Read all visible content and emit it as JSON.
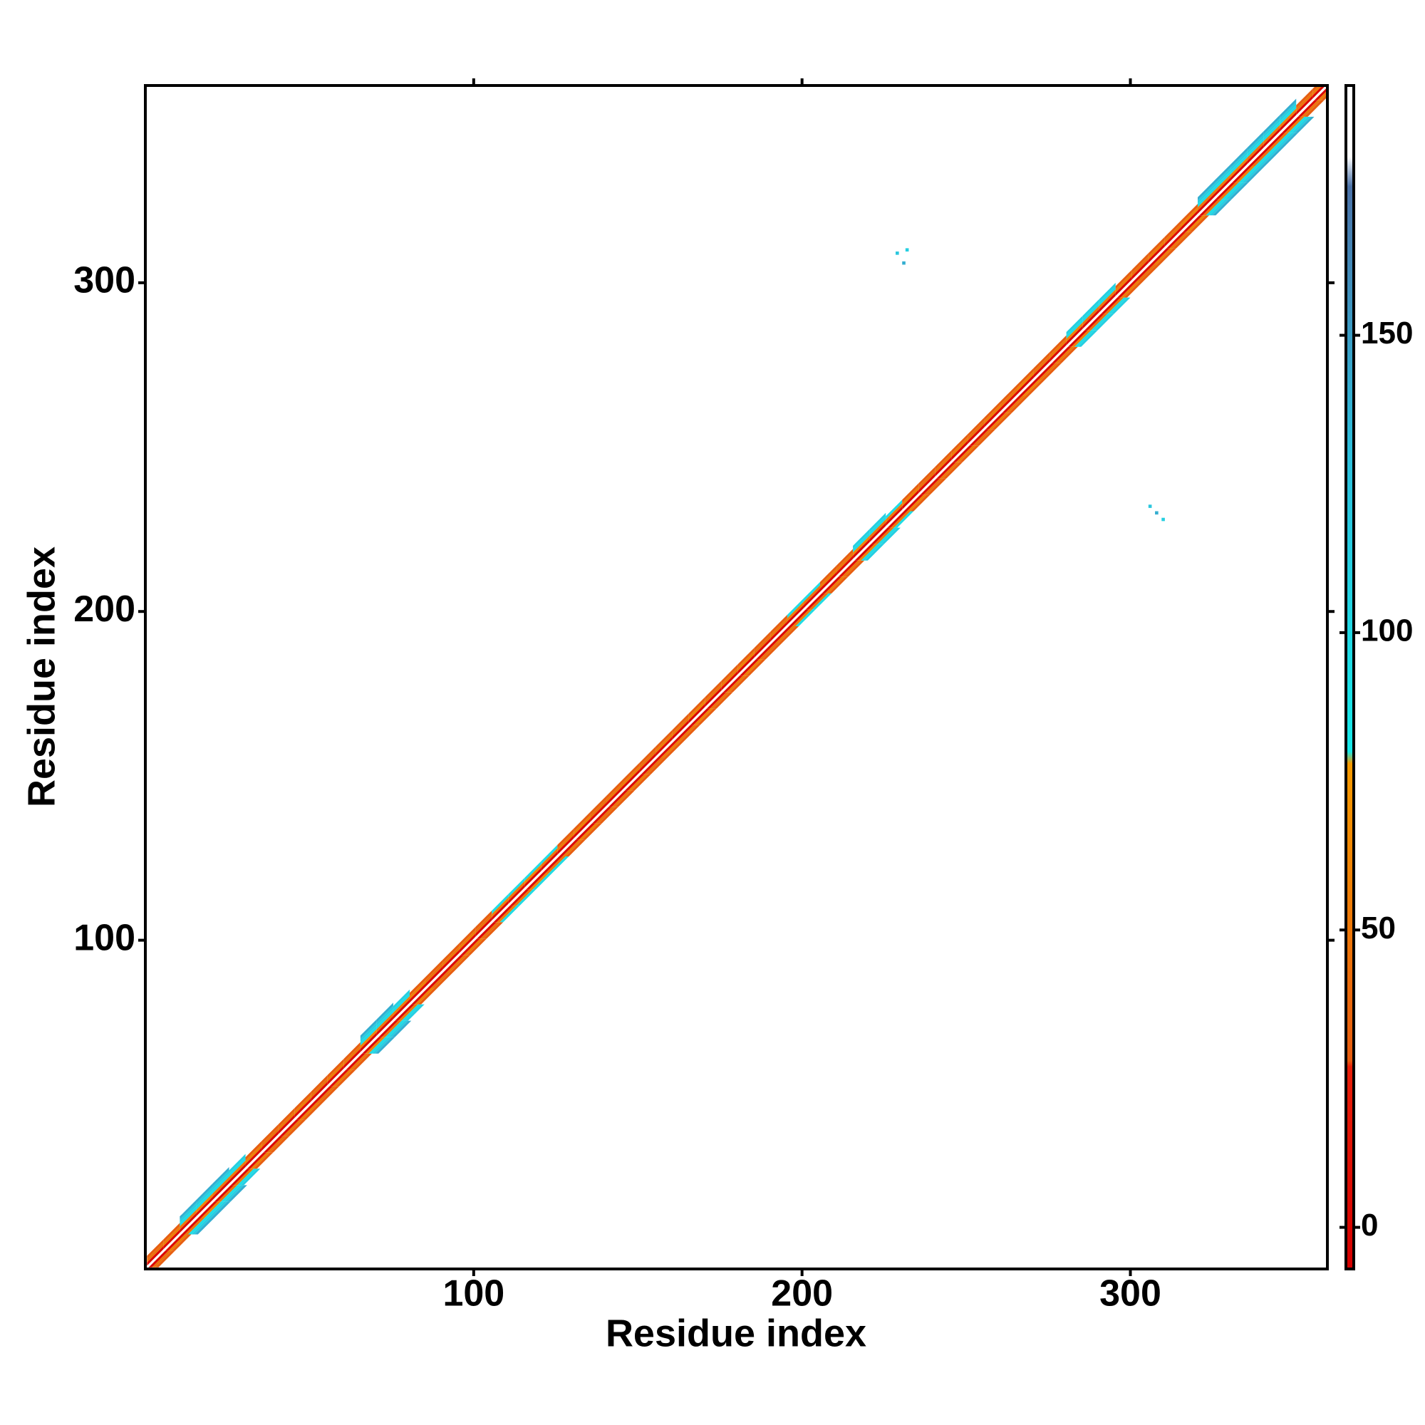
{
  "chart_data": {
    "type": "heatmap",
    "x_label": "Residue index",
    "y_label": "Residue index",
    "xlim": [
      0,
      360
    ],
    "ylim": [
      0,
      360
    ],
    "xticks": [
      100,
      200,
      300
    ],
    "yticks": [
      100,
      200,
      300
    ],
    "x": [
      3,
      8,
      13,
      18,
      23,
      28,
      33,
      38,
      43,
      48,
      53,
      58,
      63,
      68,
      73,
      78,
      83,
      88,
      93,
      98,
      103,
      108,
      113,
      118,
      123,
      128,
      133,
      138,
      143,
      148,
      153,
      158,
      163,
      168,
      173,
      178,
      183,
      188,
      193,
      198,
      203,
      208,
      213,
      218,
      223,
      228,
      233,
      238,
      243,
      248,
      253,
      258,
      263,
      268,
      273,
      278,
      283,
      288,
      293,
      298,
      303,
      308,
      313,
      318,
      323,
      328,
      333,
      338,
      343,
      348,
      353,
      358
    ],
    "bands": [
      {
        "offset": 1,
        "values": [
          3,
          6,
          5,
          8,
          4,
          5,
          7,
          3,
          5,
          6,
          4,
          8,
          5,
          3,
          6,
          5,
          7,
          4,
          5,
          6,
          3,
          5,
          8,
          4,
          6,
          5,
          3,
          7,
          5,
          4,
          6,
          8,
          5,
          3,
          5,
          6,
          4,
          7,
          5,
          3,
          6,
          5,
          8,
          4,
          5,
          6,
          3,
          7,
          5,
          4,
          6,
          5,
          8,
          3,
          5,
          6,
          4,
          7,
          5,
          3,
          6,
          5,
          8,
          4,
          5,
          6,
          3,
          5,
          7,
          4,
          6,
          5
        ]
      },
      {
        "offset": 2,
        "values": [
          45,
          55,
          50,
          60,
          48,
          52,
          58,
          45,
          50,
          55,
          45,
          55,
          50,
          60,
          48,
          52,
          58,
          45,
          50,
          55,
          45,
          55,
          50,
          60,
          48,
          52,
          58,
          45,
          50,
          55,
          45,
          55,
          50,
          60,
          48,
          52,
          58,
          45,
          50,
          55,
          45,
          55,
          50,
          60,
          48,
          52,
          58,
          45,
          50,
          55,
          45,
          55,
          50,
          60,
          48,
          52,
          58,
          45,
          50,
          55,
          45,
          55,
          50,
          60,
          48,
          52,
          58,
          45,
          50,
          55,
          48,
          52
        ]
      },
      {
        "offset": 3,
        "values": [
          30,
          30,
          95,
          95,
          95,
          95,
          30,
          30,
          30,
          30,
          30,
          30,
          30,
          95,
          95,
          95,
          30,
          30,
          30,
          30,
          30,
          95,
          95,
          95,
          95,
          30,
          30,
          30,
          30,
          30,
          30,
          30,
          30,
          30,
          30,
          30,
          30,
          30,
          30,
          95,
          95,
          30,
          30,
          95,
          95,
          95,
          30,
          30,
          30,
          30,
          30,
          30,
          30,
          30,
          30,
          30,
          95,
          95,
          95,
          30,
          30,
          30,
          30,
          30,
          95,
          95,
          95,
          95,
          95,
          95,
          30,
          30
        ]
      },
      {
        "offset": 4,
        "values": [
          null,
          null,
          110,
          110,
          110,
          110,
          null,
          null,
          null,
          null,
          null,
          null,
          null,
          110,
          110,
          110,
          null,
          null,
          null,
          null,
          null,
          null,
          null,
          null,
          null,
          null,
          null,
          null,
          null,
          null,
          null,
          null,
          null,
          null,
          null,
          null,
          null,
          null,
          null,
          null,
          null,
          null,
          null,
          110,
          110,
          null,
          null,
          null,
          null,
          null,
          null,
          null,
          null,
          null,
          null,
          null,
          110,
          110,
          110,
          null,
          null,
          null,
          null,
          null,
          110,
          110,
          110,
          110,
          110,
          110,
          null,
          null
        ]
      },
      {
        "offset": 5,
        "values": [
          null,
          null,
          140,
          140,
          140,
          null,
          null,
          null,
          null,
          null,
          null,
          null,
          null,
          140,
          140,
          null,
          null,
          null,
          null,
          null,
          null,
          null,
          null,
          null,
          null,
          null,
          null,
          null,
          null,
          null,
          null,
          null,
          null,
          null,
          null,
          null,
          null,
          null,
          null,
          null,
          null,
          null,
          null,
          null,
          null,
          null,
          null,
          null,
          null,
          null,
          null,
          null,
          null,
          null,
          null,
          null,
          null,
          null,
          null,
          null,
          null,
          null,
          null,
          null,
          140,
          140,
          140,
          140,
          140,
          140,
          null,
          null
        ]
      }
    ],
    "contacts": {
      "x": [
        229,
        231,
        232,
        306,
        308,
        310
      ],
      "y": [
        309,
        306,
        310,
        232,
        230,
        228
      ],
      "values": [
        120,
        140,
        110,
        120,
        140,
        110
      ]
    },
    "colorbar": {
      "lim": [
        -7,
        192
      ],
      "ticks": [
        0,
        50,
        100,
        150
      ],
      "stops": [
        {
          "value": -7,
          "color": "#d40000"
        },
        {
          "value": 27,
          "color": "#e8200a"
        },
        {
          "value": 28,
          "color": "#e65c10"
        },
        {
          "value": 78,
          "color": "#f59a00"
        },
        {
          "value": 80,
          "color": "#18e8e8"
        },
        {
          "value": 130,
          "color": "#2ebfdc"
        },
        {
          "value": 175,
          "color": "#4b72a8"
        },
        {
          "value": 180,
          "color": "#ffffff"
        },
        {
          "value": 192,
          "color": "#ffffff"
        }
      ]
    }
  }
}
